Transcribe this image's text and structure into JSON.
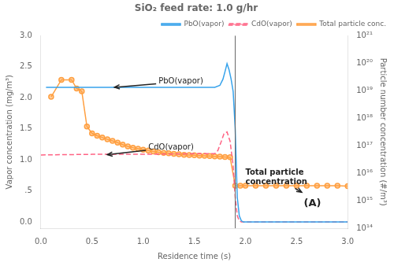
{
  "chart_data": {
    "type": "line",
    "title": "SiO₂ feed rate: 1.0 g/hr",
    "x_label": "Residence time (s)",
    "y_label": "Vapor concentration (mg/m³)",
    "y2_label": "Particle number concentration (#/m³)",
    "xlim": [
      0.0,
      3.0
    ],
    "xticks": [
      {
        "value": 0.0,
        "label": "0.0"
      },
      0.5,
      {
        "value": 1.0,
        "label": "1.0"
      },
      1.5,
      {
        "value": 2.0,
        "label": "2.0"
      },
      2.5,
      {
        "value": 3.0,
        "label": "3.0"
      }
    ],
    "ylim": [
      -0.1,
      3.0
    ],
    "yticks": [
      {
        "value": 0.0,
        "label": "0.0"
      },
      {
        "value": 0.5,
        "label": ".5"
      },
      {
        "value": 1.0,
        "label": "1.0"
      },
      1.5,
      {
        "value": 2.0,
        "label": "2.0"
      },
      2.5,
      {
        "value": 3.0,
        "label": "3.0"
      }
    ],
    "y2lim": [
      100000000000000.0,
      1e+21
    ],
    "y2ticks": [
      {
        "value": 100000000000000.0,
        "label": "10¹⁴"
      },
      {
        "value": 1000000000000000.0,
        "label": "10¹⁵"
      },
      {
        "value": 1e+16,
        "label": "10¹⁶"
      },
      {
        "value": 1e+17,
        "label": "10¹⁷"
      },
      {
        "value": 1e+18,
        "label": "10¹⁸"
      },
      {
        "value": 1e+19,
        "label": "10¹⁹"
      },
      {
        "value": 1e+20,
        "label": "10²⁰"
      },
      {
        "value": 1e+21,
        "label": "10²¹"
      }
    ],
    "log": "y2",
    "grid": false,
    "legend": "upper right",
    "series": [
      {
        "name": "PbO(vapor)",
        "line_style": "solid",
        "marker": "none",
        "x": [
          0.05,
          0.1,
          0.15,
          0.2,
          0.25,
          0.3,
          0.35,
          0.4,
          0.45,
          0.5,
          0.6,
          0.7,
          0.8,
          0.9,
          1.0,
          1.1,
          1.2,
          1.3,
          1.4,
          1.5,
          1.6,
          1.7,
          1.75,
          1.78,
          1.8,
          1.82,
          1.84,
          1.86,
          1.88,
          1.9,
          1.92,
          1.94,
          1.96,
          1.98,
          2.0,
          2.1,
          2.5,
          3.0
        ],
        "values": [
          2.17,
          2.17,
          2.17,
          2.17,
          2.17,
          2.17,
          2.17,
          2.17,
          2.17,
          2.17,
          2.17,
          2.17,
          2.17,
          2.17,
          2.17,
          2.17,
          2.17,
          2.17,
          2.17,
          2.17,
          2.17,
          2.17,
          2.2,
          2.3,
          2.42,
          2.55,
          2.45,
          2.3,
          2.1,
          1.5,
          0.4,
          0.1,
          0.02,
          0.0,
          0.0,
          0.0,
          0.0,
          0.0
        ]
      },
      {
        "name": "CdO(vapor)",
        "line_style": "dashed",
        "marker": "none",
        "x": [
          0.0,
          0.5,
          1.0,
          1.5,
          1.7,
          1.73,
          1.76,
          1.79,
          1.82,
          1.85,
          1.88,
          1.9,
          1.92,
          1.94,
          1.96,
          2.0,
          2.5,
          3.0
        ],
        "values": [
          1.08,
          1.09,
          1.09,
          1.1,
          1.1,
          1.15,
          1.28,
          1.42,
          1.45,
          1.3,
          0.9,
          0.4,
          0.1,
          0.02,
          0.0,
          0.0,
          0.0,
          0.0
        ]
      },
      {
        "name": "Total particle conc.",
        "line_style": "solid",
        "marker": "circle",
        "axis": "y2",
        "x": [
          0.1,
          0.2,
          0.3,
          0.35,
          0.4,
          0.45,
          0.5,
          0.55,
          0.6,
          0.65,
          0.7,
          0.75,
          0.8,
          0.85,
          0.9,
          0.95,
          1.0,
          1.05,
          1.1,
          1.15,
          1.2,
          1.25,
          1.3,
          1.35,
          1.4,
          1.45,
          1.5,
          1.55,
          1.6,
          1.65,
          1.7,
          1.75,
          1.8,
          1.85,
          1.9,
          1.95,
          2.0,
          2.1,
          2.2,
          2.3,
          2.4,
          2.5,
          2.6,
          2.7,
          2.8,
          2.9,
          3.0
        ],
        "values": [
          6e+18,
          2.5e+19,
          2.5e+19,
          1.2e+19,
          9.5e+18,
          5e+17,
          2.8e+17,
          2.3e+17,
          2e+17,
          1.7e+17,
          1.5e+17,
          1.3e+17,
          1.1e+17,
          9.5e+16,
          8.5e+16,
          7.8e+16,
          7.2e+16,
          6.7e+16,
          6.2e+16,
          5.8e+16,
          5.5e+16,
          5.3e+16,
          5.1e+16,
          4.9e+16,
          4.7e+16,
          4.6e+16,
          4.5e+16,
          4.4e+16,
          4.3e+16,
          4.2e+16,
          4.1e+16,
          4e+16,
          3.9e+16,
          3.8e+16,
          3500000000000000.0,
          3500000000000000.0,
          3500000000000000.0,
          3500000000000000.0,
          3500000000000000.0,
          3500000000000000.0,
          3500000000000000.0,
          3500000000000000.0,
          3500000000000000.0,
          3500000000000000.0,
          3500000000000000.0,
          3500000000000000.0,
          3400000000000000.0
        ]
      }
    ],
    "annotations": [
      {
        "type": "vline",
        "x": 1.9
      },
      {
        "text": "PbO(vapor)",
        "x": 1.15,
        "y": 2.26,
        "arrow_to": [
          0.72,
          2.17
        ]
      },
      {
        "text": "CdO(vapor)",
        "x": 1.05,
        "y": 1.2,
        "arrow_to": [
          0.65,
          1.085
        ]
      },
      {
        "text": "Total particle\nconcentration",
        "x": 2.0,
        "y": 0.72,
        "arrow_to": [
          2.55,
          0.48
        ],
        "bold": true
      },
      {
        "text": "(A)",
        "bold": true
      }
    ]
  }
}
